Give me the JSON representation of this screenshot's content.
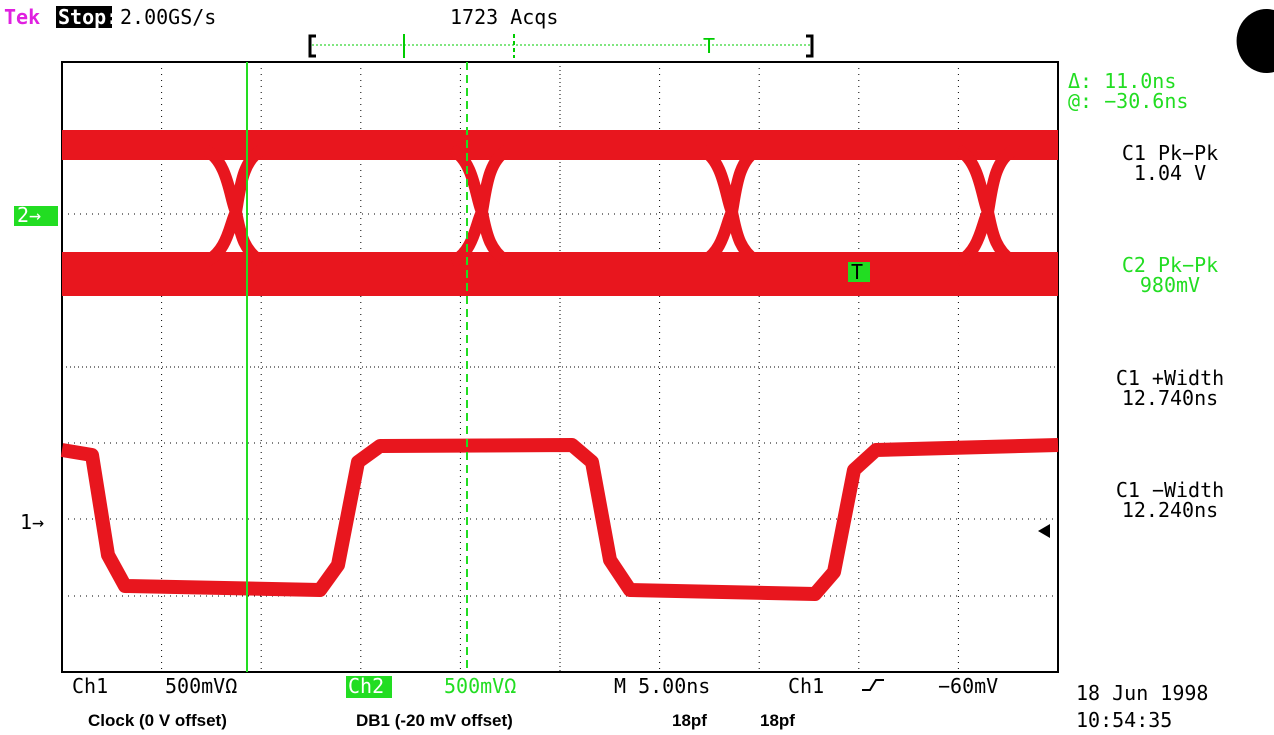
{
  "header": {
    "brand": "Tek",
    "state": "Stop:",
    "sample_rate": "2.00GS/s",
    "acquisitions": "1723 Acqs"
  },
  "cursor_readout": {
    "delta": "Δ: 11.0ns",
    "at": "@: −30.6ns"
  },
  "measurements": [
    {
      "name": "C1 Pk−Pk",
      "value": "1.04 V"
    },
    {
      "name": "C2 Pk−Pk",
      "value": "980mV"
    },
    {
      "name": "C1 +Width",
      "value": "12.740ns"
    },
    {
      "name": "C1 −Width",
      "value": "12.240ns"
    }
  ],
  "markers": {
    "ch2": "2→",
    "ch1": "1→",
    "trigger": "T",
    "trigger2": "T"
  },
  "footer": {
    "ch1": "Ch1",
    "ch1_scale": "500mVΩ",
    "ch2": "Ch2",
    "ch2_scale": "500mVΩ",
    "timebase": "M 5.00ns",
    "trigger_source": "Ch1",
    "trigger_level": "−60mV",
    "date": "18 Jun 1998",
    "time": "10:54:35"
  },
  "annotations": [
    "Clock (0 V offset)",
    "DB1 (-20 mV offset)",
    "18pf",
    "18pf"
  ]
}
